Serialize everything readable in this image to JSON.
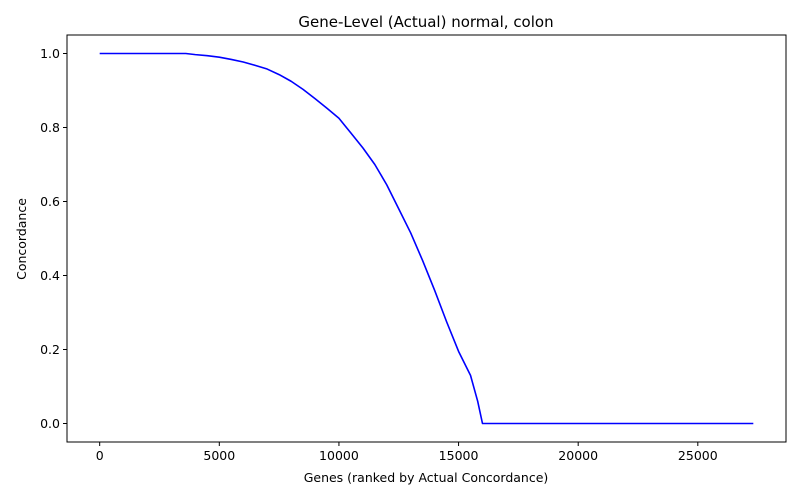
{
  "chart_data": {
    "type": "line",
    "title": "Gene-Level (Actual) normal, colon",
    "xlabel": "Genes (ranked by Actual Concordance)",
    "ylabel": "Concordance",
    "xlim": [
      -1366,
      28686
    ],
    "ylim": [
      -0.05,
      1.05
    ],
    "xticks": [
      0,
      5000,
      10000,
      15000,
      20000,
      25000
    ],
    "yticks": [
      0.0,
      0.2,
      0.4,
      0.6,
      0.8,
      1.0
    ],
    "xtick_labels": [
      "0",
      "5000",
      "10000",
      "15000",
      "20000",
      "25000"
    ],
    "ytick_labels": [
      "0.0",
      "0.2",
      "0.4",
      "0.6",
      "0.8",
      "1.0"
    ],
    "grid": false,
    "series": [
      {
        "color": "#0000ff",
        "x": [
          0,
          1000,
          2000,
          3000,
          3600,
          4000,
          4500,
          5000,
          5500,
          6000,
          6500,
          7000,
          7500,
          8000,
          8500,
          9000,
          9500,
          10000,
          10500,
          11000,
          11500,
          12000,
          12500,
          13000,
          13500,
          14000,
          14500,
          15000,
          15500,
          15800,
          16000,
          17000,
          20000,
          25000,
          27320
        ],
        "y": [
          1.0,
          1.0,
          1.0,
          1.0,
          1.0,
          0.997,
          0.994,
          0.99,
          0.984,
          0.977,
          0.968,
          0.958,
          0.943,
          0.925,
          0.903,
          0.878,
          0.852,
          0.825,
          0.785,
          0.745,
          0.7,
          0.645,
          0.58,
          0.515,
          0.44,
          0.36,
          0.275,
          0.195,
          0.13,
          0.06,
          0.0,
          0.0,
          0.0,
          0.0,
          0.0
        ]
      }
    ]
  }
}
